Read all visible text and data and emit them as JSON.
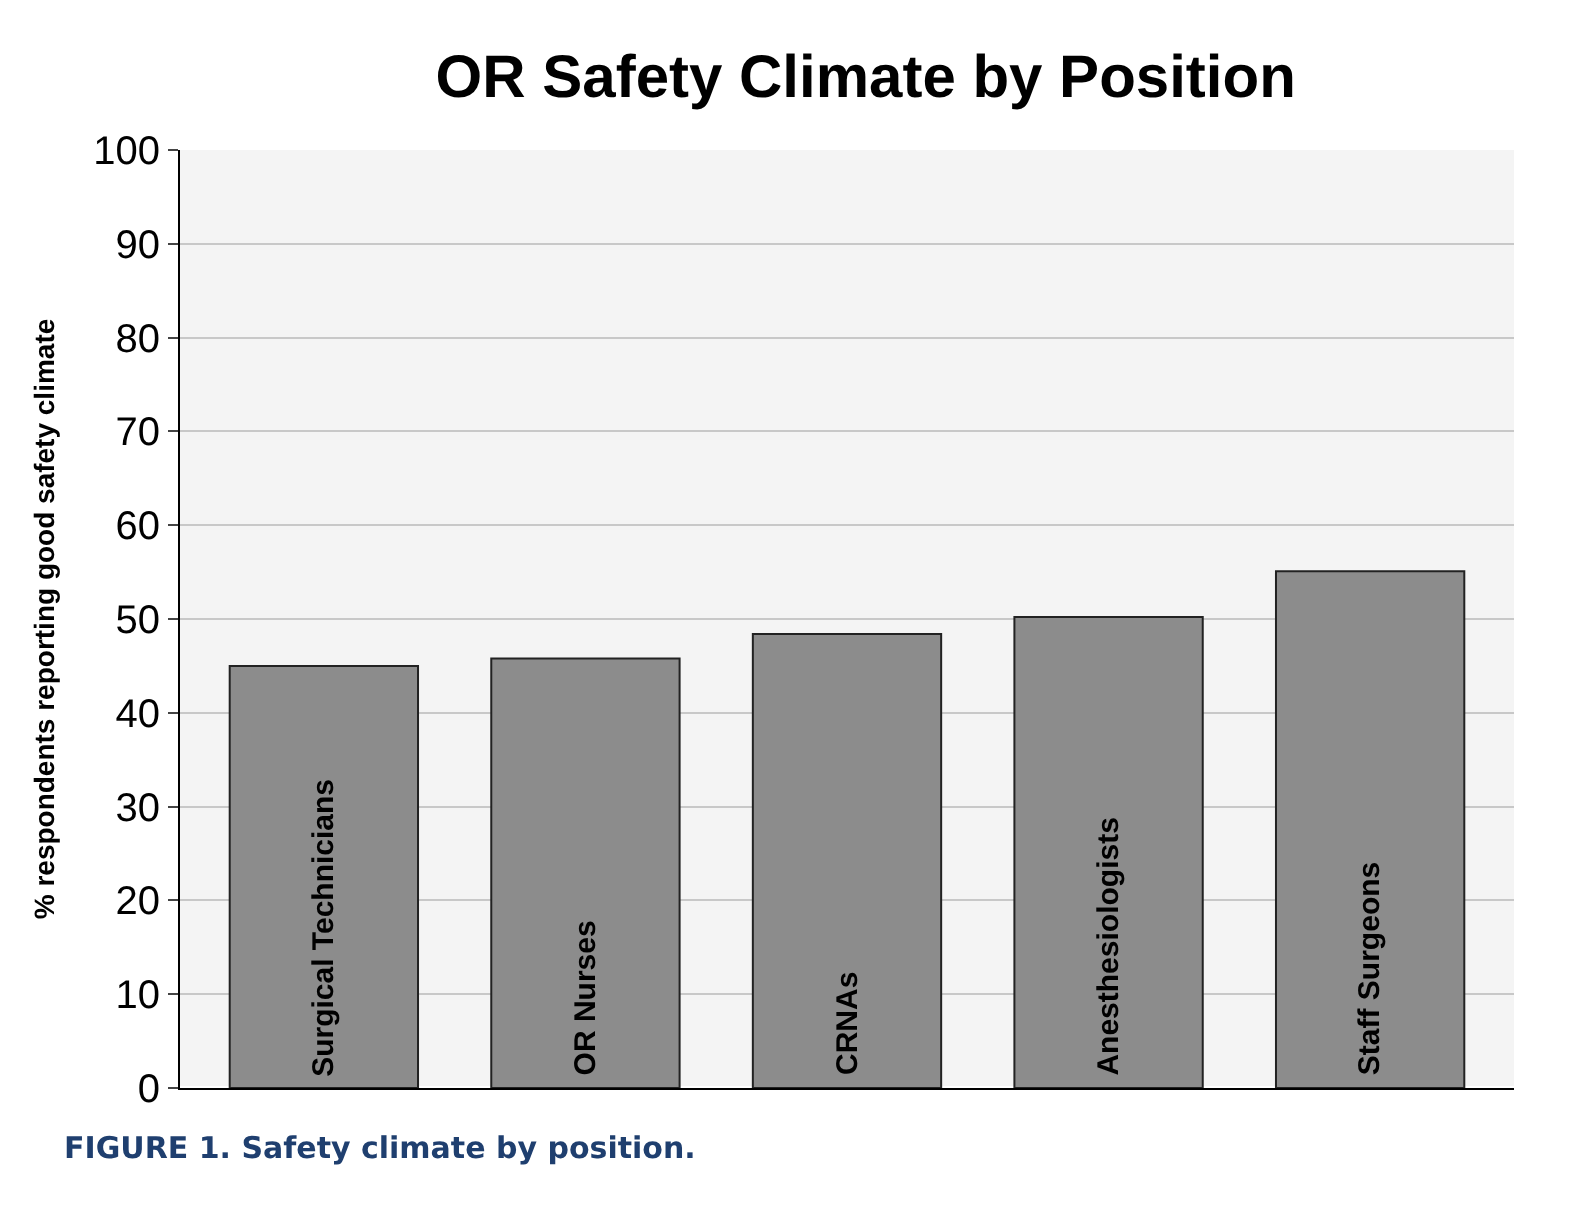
{
  "chart_data": {
    "type": "bar",
    "title": "OR Safety Climate by Position",
    "ylabel": "% respondents reporting good safety climate",
    "categories": [
      "Surgical Technicians",
      "OR Nurses",
      "CRNAs",
      "Anesthesiologists",
      "Staff Surgeons"
    ],
    "values": [
      45,
      45.8,
      48.4,
      50.2,
      55.1
    ],
    "color": "#8c8c8c",
    "ylim": [
      0,
      100
    ],
    "yticks": [
      0,
      10,
      20,
      30,
      40,
      50,
      60,
      70,
      80,
      90,
      100
    ],
    "grid": "y",
    "annotations": [
      "FIGURE 1. Safety climate by position."
    ]
  }
}
